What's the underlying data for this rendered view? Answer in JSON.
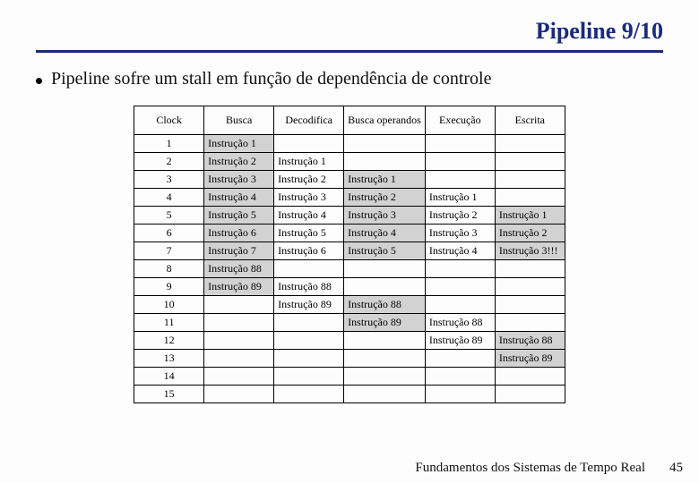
{
  "title": "Pipeline 9/10",
  "bullet": "Pipeline sofre um stall em função de dependência de controle",
  "footer": "Fundamentos dos Sistemas de Tempo Real",
  "pagenum": "45",
  "table": {
    "headers": [
      "Clock",
      "Busca",
      "Decodifica",
      "Busca operandos",
      "Execução",
      "Escrita"
    ],
    "rows": [
      {
        "n": "1",
        "cells": [
          {
            "t": "Instrução 1",
            "s": true
          },
          {
            "t": "",
            "s": false
          },
          {
            "t": "",
            "s": false
          },
          {
            "t": "",
            "s": false
          },
          {
            "t": "",
            "s": false
          }
        ]
      },
      {
        "n": "2",
        "cells": [
          {
            "t": "Instrução 2",
            "s": true
          },
          {
            "t": "Instrução 1",
            "s": false
          },
          {
            "t": "",
            "s": false
          },
          {
            "t": "",
            "s": false
          },
          {
            "t": "",
            "s": false
          }
        ]
      },
      {
        "n": "3",
        "cells": [
          {
            "t": "Instrução 3",
            "s": true
          },
          {
            "t": "Instrução 2",
            "s": false
          },
          {
            "t": "Instrução 1",
            "s": true
          },
          {
            "t": "",
            "s": false
          },
          {
            "t": "",
            "s": false
          }
        ]
      },
      {
        "n": "4",
        "cells": [
          {
            "t": "Instrução 4",
            "s": true
          },
          {
            "t": "Instrução 3",
            "s": false
          },
          {
            "t": "Instrução 2",
            "s": true
          },
          {
            "t": "Instrução 1",
            "s": false
          },
          {
            "t": "",
            "s": false
          }
        ]
      },
      {
        "n": "5",
        "cells": [
          {
            "t": "Instrução 5",
            "s": true
          },
          {
            "t": "Instrução 4",
            "s": false
          },
          {
            "t": "Instrução 3",
            "s": true
          },
          {
            "t": "Instrução 2",
            "s": false
          },
          {
            "t": "Instrução 1",
            "s": true
          }
        ]
      },
      {
        "n": "6",
        "cells": [
          {
            "t": "Instrução 6",
            "s": true
          },
          {
            "t": "Instrução 5",
            "s": false
          },
          {
            "t": "Instrução 4",
            "s": true
          },
          {
            "t": "Instrução 3",
            "s": false
          },
          {
            "t": "Instrução 2",
            "s": true
          }
        ]
      },
      {
        "n": "7",
        "cells": [
          {
            "t": "Instrução 7",
            "s": true
          },
          {
            "t": "Instrução 6",
            "s": false
          },
          {
            "t": "Instrução 5",
            "s": true
          },
          {
            "t": "Instrução 4",
            "s": false
          },
          {
            "t": "Instrução 3!!!",
            "s": true
          }
        ]
      },
      {
        "n": "8",
        "cells": [
          {
            "t": "Instrução 88",
            "s": true
          },
          {
            "t": "",
            "s": false
          },
          {
            "t": "",
            "s": false
          },
          {
            "t": "",
            "s": false
          },
          {
            "t": "",
            "s": false
          }
        ]
      },
      {
        "n": "9",
        "cells": [
          {
            "t": "Instrução 89",
            "s": true
          },
          {
            "t": "Instrução 88",
            "s": false
          },
          {
            "t": "",
            "s": false
          },
          {
            "t": "",
            "s": false
          },
          {
            "t": "",
            "s": false
          }
        ]
      },
      {
        "n": "10",
        "cells": [
          {
            "t": "",
            "s": false
          },
          {
            "t": "Instrução 89",
            "s": false
          },
          {
            "t": "Instrução 88",
            "s": true
          },
          {
            "t": "",
            "s": false
          },
          {
            "t": "",
            "s": false
          }
        ]
      },
      {
        "n": "11",
        "cells": [
          {
            "t": "",
            "s": false
          },
          {
            "t": "",
            "s": false
          },
          {
            "t": "Instrução 89",
            "s": true
          },
          {
            "t": "Instrução 88",
            "s": false
          },
          {
            "t": "",
            "s": false
          }
        ]
      },
      {
        "n": "12",
        "cells": [
          {
            "t": "",
            "s": false
          },
          {
            "t": "",
            "s": false
          },
          {
            "t": "",
            "s": false
          },
          {
            "t": "Instrução 89",
            "s": false
          },
          {
            "t": "Instrução 88",
            "s": true
          }
        ]
      },
      {
        "n": "13",
        "cells": [
          {
            "t": "",
            "s": false
          },
          {
            "t": "",
            "s": false
          },
          {
            "t": "",
            "s": false
          },
          {
            "t": "",
            "s": false
          },
          {
            "t": "Instrução 89",
            "s": true
          }
        ]
      },
      {
        "n": "14",
        "cells": [
          {
            "t": "",
            "s": false
          },
          {
            "t": "",
            "s": false
          },
          {
            "t": "",
            "s": false
          },
          {
            "t": "",
            "s": false
          },
          {
            "t": "",
            "s": false
          }
        ]
      },
      {
        "n": "15",
        "cells": [
          {
            "t": "",
            "s": false
          },
          {
            "t": "",
            "s": false
          },
          {
            "t": "",
            "s": false
          },
          {
            "t": "",
            "s": false
          },
          {
            "t": "",
            "s": false
          }
        ]
      }
    ]
  }
}
